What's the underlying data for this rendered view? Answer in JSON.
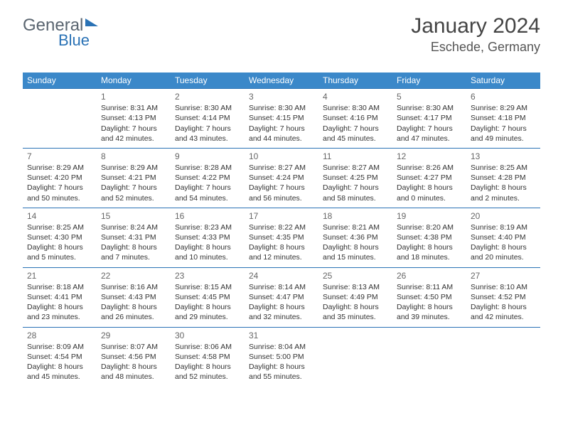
{
  "logo": {
    "part1": "General",
    "part2": "Blue"
  },
  "title": {
    "month": "January 2024",
    "location": "Eschede, Germany"
  },
  "days": [
    "Sunday",
    "Monday",
    "Tuesday",
    "Wednesday",
    "Thursday",
    "Friday",
    "Saturday"
  ],
  "colors": {
    "header_bg": "#3b88c9",
    "border": "#2a72b5",
    "text": "#333333"
  },
  "weeks": [
    [
      null,
      {
        "n": "1",
        "sr": "8:31 AM",
        "ss": "4:13 PM",
        "dl": "7 hours and 42 minutes."
      },
      {
        "n": "2",
        "sr": "8:30 AM",
        "ss": "4:14 PM",
        "dl": "7 hours and 43 minutes."
      },
      {
        "n": "3",
        "sr": "8:30 AM",
        "ss": "4:15 PM",
        "dl": "7 hours and 44 minutes."
      },
      {
        "n": "4",
        "sr": "8:30 AM",
        "ss": "4:16 PM",
        "dl": "7 hours and 45 minutes."
      },
      {
        "n": "5",
        "sr": "8:30 AM",
        "ss": "4:17 PM",
        "dl": "7 hours and 47 minutes."
      },
      {
        "n": "6",
        "sr": "8:29 AM",
        "ss": "4:18 PM",
        "dl": "7 hours and 49 minutes."
      }
    ],
    [
      {
        "n": "7",
        "sr": "8:29 AM",
        "ss": "4:20 PM",
        "dl": "7 hours and 50 minutes."
      },
      {
        "n": "8",
        "sr": "8:29 AM",
        "ss": "4:21 PM",
        "dl": "7 hours and 52 minutes."
      },
      {
        "n": "9",
        "sr": "8:28 AM",
        "ss": "4:22 PM",
        "dl": "7 hours and 54 minutes."
      },
      {
        "n": "10",
        "sr": "8:27 AM",
        "ss": "4:24 PM",
        "dl": "7 hours and 56 minutes."
      },
      {
        "n": "11",
        "sr": "8:27 AM",
        "ss": "4:25 PM",
        "dl": "7 hours and 58 minutes."
      },
      {
        "n": "12",
        "sr": "8:26 AM",
        "ss": "4:27 PM",
        "dl": "8 hours and 0 minutes."
      },
      {
        "n": "13",
        "sr": "8:25 AM",
        "ss": "4:28 PM",
        "dl": "8 hours and 2 minutes."
      }
    ],
    [
      {
        "n": "14",
        "sr": "8:25 AM",
        "ss": "4:30 PM",
        "dl": "8 hours and 5 minutes."
      },
      {
        "n": "15",
        "sr": "8:24 AM",
        "ss": "4:31 PM",
        "dl": "8 hours and 7 minutes."
      },
      {
        "n": "16",
        "sr": "8:23 AM",
        "ss": "4:33 PM",
        "dl": "8 hours and 10 minutes."
      },
      {
        "n": "17",
        "sr": "8:22 AM",
        "ss": "4:35 PM",
        "dl": "8 hours and 12 minutes."
      },
      {
        "n": "18",
        "sr": "8:21 AM",
        "ss": "4:36 PM",
        "dl": "8 hours and 15 minutes."
      },
      {
        "n": "19",
        "sr": "8:20 AM",
        "ss": "4:38 PM",
        "dl": "8 hours and 18 minutes."
      },
      {
        "n": "20",
        "sr": "8:19 AM",
        "ss": "4:40 PM",
        "dl": "8 hours and 20 minutes."
      }
    ],
    [
      {
        "n": "21",
        "sr": "8:18 AM",
        "ss": "4:41 PM",
        "dl": "8 hours and 23 minutes."
      },
      {
        "n": "22",
        "sr": "8:16 AM",
        "ss": "4:43 PM",
        "dl": "8 hours and 26 minutes."
      },
      {
        "n": "23",
        "sr": "8:15 AM",
        "ss": "4:45 PM",
        "dl": "8 hours and 29 minutes."
      },
      {
        "n": "24",
        "sr": "8:14 AM",
        "ss": "4:47 PM",
        "dl": "8 hours and 32 minutes."
      },
      {
        "n": "25",
        "sr": "8:13 AM",
        "ss": "4:49 PM",
        "dl": "8 hours and 35 minutes."
      },
      {
        "n": "26",
        "sr": "8:11 AM",
        "ss": "4:50 PM",
        "dl": "8 hours and 39 minutes."
      },
      {
        "n": "27",
        "sr": "8:10 AM",
        "ss": "4:52 PM",
        "dl": "8 hours and 42 minutes."
      }
    ],
    [
      {
        "n": "28",
        "sr": "8:09 AM",
        "ss": "4:54 PM",
        "dl": "8 hours and 45 minutes."
      },
      {
        "n": "29",
        "sr": "8:07 AM",
        "ss": "4:56 PM",
        "dl": "8 hours and 48 minutes."
      },
      {
        "n": "30",
        "sr": "8:06 AM",
        "ss": "4:58 PM",
        "dl": "8 hours and 52 minutes."
      },
      {
        "n": "31",
        "sr": "8:04 AM",
        "ss": "5:00 PM",
        "dl": "8 hours and 55 minutes."
      },
      null,
      null,
      null
    ]
  ]
}
